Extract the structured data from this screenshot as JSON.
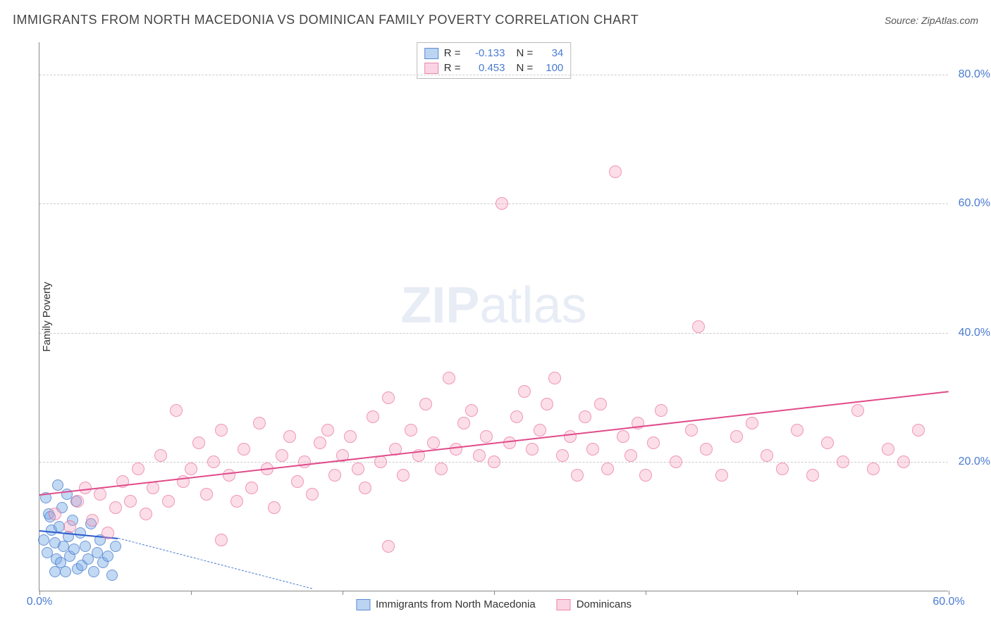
{
  "header": {
    "title": "IMMIGRANTS FROM NORTH MACEDONIA VS DOMINICAN FAMILY POVERTY CORRELATION CHART",
    "source": "Source: ZipAtlas.com"
  },
  "watermark": {
    "prefix": "ZIP",
    "suffix": "atlas"
  },
  "chart": {
    "type": "scatter",
    "y_axis_label": "Family Poverty",
    "xlim": [
      0,
      60
    ],
    "ylim": [
      0,
      85
    ],
    "x_ticks": [
      0,
      10,
      20,
      30,
      40,
      50,
      60
    ],
    "x_tick_labels": [
      "0.0%",
      "",
      "",
      "",
      "",
      "",
      "60.0%"
    ],
    "y_ticks": [
      20,
      40,
      60,
      80
    ],
    "y_tick_labels": [
      "20.0%",
      "40.0%",
      "60.0%",
      "80.0%"
    ],
    "grid_color": "#cccccc",
    "axis_color": "#888888",
    "label_color": "#4a7bd0",
    "series": [
      {
        "name": "Immigrants from North Macedonia",
        "color_fill": "rgba(120,170,230,0.45)",
        "color_stroke": "rgba(70,120,200,0.7)",
        "marker_size": 16,
        "r": -0.133,
        "n": 34,
        "r_text": "-0.133",
        "n_text": "34",
        "trend": {
          "x1": 0,
          "y1": 9.5,
          "x2": 5.2,
          "y2": 8.3,
          "color": "#2a5bd0",
          "dash_x2": 18,
          "dash_y2": 0.5
        },
        "points": [
          {
            "x": 0.3,
            "y": 8
          },
          {
            "x": 0.5,
            "y": 6
          },
          {
            "x": 0.6,
            "y": 12
          },
          {
            "x": 0.8,
            "y": 9.5
          },
          {
            "x": 1.0,
            "y": 7.5
          },
          {
            "x": 1.1,
            "y": 5
          },
          {
            "x": 1.2,
            "y": 16.5
          },
          {
            "x": 1.3,
            "y": 10
          },
          {
            "x": 1.4,
            "y": 4.5
          },
          {
            "x": 1.5,
            "y": 13
          },
          {
            "x": 1.6,
            "y": 7
          },
          {
            "x": 1.7,
            "y": 3
          },
          {
            "x": 1.8,
            "y": 15
          },
          {
            "x": 1.9,
            "y": 8.5
          },
          {
            "x": 2.0,
            "y": 5.5
          },
          {
            "x": 2.2,
            "y": 11
          },
          {
            "x": 2.3,
            "y": 6.5
          },
          {
            "x": 2.4,
            "y": 14
          },
          {
            "x": 2.5,
            "y": 3.5
          },
          {
            "x": 2.7,
            "y": 9
          },
          {
            "x": 2.8,
            "y": 4
          },
          {
            "x": 3.0,
            "y": 7
          },
          {
            "x": 3.2,
            "y": 5
          },
          {
            "x": 3.4,
            "y": 10.5
          },
          {
            "x": 3.6,
            "y": 3
          },
          {
            "x": 3.8,
            "y": 6
          },
          {
            "x": 4.0,
            "y": 8
          },
          {
            "x": 4.2,
            "y": 4.5
          },
          {
            "x": 4.5,
            "y": 5.5
          },
          {
            "x": 4.8,
            "y": 2.5
          },
          {
            "x": 5.0,
            "y": 7
          },
          {
            "x": 0.4,
            "y": 14.5
          },
          {
            "x": 0.7,
            "y": 11.5
          },
          {
            "x": 1.0,
            "y": 3
          }
        ]
      },
      {
        "name": "Dominicans",
        "color_fill": "rgba(245,160,190,0.35)",
        "color_stroke": "rgba(230,100,150,0.6)",
        "marker_size": 18,
        "r": 0.453,
        "n": 100,
        "r_text": "0.453",
        "n_text": "100",
        "trend": {
          "x1": 0,
          "y1": 15,
          "x2": 60,
          "y2": 31,
          "color": "#e04b8a"
        },
        "points": [
          {
            "x": 1,
            "y": 12
          },
          {
            "x": 2,
            "y": 10
          },
          {
            "x": 2.5,
            "y": 14
          },
          {
            "x": 3,
            "y": 16
          },
          {
            "x": 3.5,
            "y": 11
          },
          {
            "x": 4,
            "y": 15
          },
          {
            "x": 4.5,
            "y": 9
          },
          {
            "x": 5,
            "y": 13
          },
          {
            "x": 5.5,
            "y": 17
          },
          {
            "x": 6,
            "y": 14
          },
          {
            "x": 6.5,
            "y": 19
          },
          {
            "x": 7,
            "y": 12
          },
          {
            "x": 7.5,
            "y": 16
          },
          {
            "x": 8,
            "y": 21
          },
          {
            "x": 8.5,
            "y": 14
          },
          {
            "x": 9,
            "y": 28
          },
          {
            "x": 9.5,
            "y": 17
          },
          {
            "x": 10,
            "y": 19
          },
          {
            "x": 10.5,
            "y": 23
          },
          {
            "x": 11,
            "y": 15
          },
          {
            "x": 11.5,
            "y": 20
          },
          {
            "x": 12,
            "y": 25
          },
          {
            "x": 12.5,
            "y": 18
          },
          {
            "x": 13,
            "y": 14
          },
          {
            "x": 13.5,
            "y": 22
          },
          {
            "x": 14,
            "y": 16
          },
          {
            "x": 14.5,
            "y": 26
          },
          {
            "x": 15,
            "y": 19
          },
          {
            "x": 15.5,
            "y": 13
          },
          {
            "x": 16,
            "y": 21
          },
          {
            "x": 16.5,
            "y": 24
          },
          {
            "x": 17,
            "y": 17
          },
          {
            "x": 17.5,
            "y": 20
          },
          {
            "x": 18,
            "y": 15
          },
          {
            "x": 18.5,
            "y": 23
          },
          {
            "x": 19,
            "y": 25
          },
          {
            "x": 19.5,
            "y": 18
          },
          {
            "x": 20,
            "y": 21
          },
          {
            "x": 20.5,
            "y": 24
          },
          {
            "x": 21,
            "y": 19
          },
          {
            "x": 21.5,
            "y": 16
          },
          {
            "x": 22,
            "y": 27
          },
          {
            "x": 22.5,
            "y": 20
          },
          {
            "x": 23,
            "y": 30
          },
          {
            "x": 23.5,
            "y": 22
          },
          {
            "x": 24,
            "y": 18
          },
          {
            "x": 24.5,
            "y": 25
          },
          {
            "x": 25,
            "y": 21
          },
          {
            "x": 25.5,
            "y": 29
          },
          {
            "x": 26,
            "y": 23
          },
          {
            "x": 26.5,
            "y": 19
          },
          {
            "x": 27,
            "y": 33
          },
          {
            "x": 27.5,
            "y": 22
          },
          {
            "x": 28,
            "y": 26
          },
          {
            "x": 28.5,
            "y": 28
          },
          {
            "x": 29,
            "y": 21
          },
          {
            "x": 29.5,
            "y": 24
          },
          {
            "x": 30,
            "y": 20
          },
          {
            "x": 30.5,
            "y": 60
          },
          {
            "x": 31,
            "y": 23
          },
          {
            "x": 31.5,
            "y": 27
          },
          {
            "x": 32,
            "y": 31
          },
          {
            "x": 32.5,
            "y": 22
          },
          {
            "x": 33,
            "y": 25
          },
          {
            "x": 33.5,
            "y": 29
          },
          {
            "x": 34,
            "y": 33
          },
          {
            "x": 34.5,
            "y": 21
          },
          {
            "x": 35,
            "y": 24
          },
          {
            "x": 35.5,
            "y": 18
          },
          {
            "x": 36,
            "y": 27
          },
          {
            "x": 36.5,
            "y": 22
          },
          {
            "x": 37,
            "y": 29
          },
          {
            "x": 37.5,
            "y": 19
          },
          {
            "x": 38,
            "y": 65
          },
          {
            "x": 38.5,
            "y": 24
          },
          {
            "x": 39,
            "y": 21
          },
          {
            "x": 39.5,
            "y": 26
          },
          {
            "x": 40,
            "y": 18
          },
          {
            "x": 40.5,
            "y": 23
          },
          {
            "x": 41,
            "y": 28
          },
          {
            "x": 42,
            "y": 20
          },
          {
            "x": 43,
            "y": 25
          },
          {
            "x": 43.5,
            "y": 41
          },
          {
            "x": 44,
            "y": 22
          },
          {
            "x": 45,
            "y": 18
          },
          {
            "x": 46,
            "y": 24
          },
          {
            "x": 47,
            "y": 26
          },
          {
            "x": 48,
            "y": 21
          },
          {
            "x": 49,
            "y": 19
          },
          {
            "x": 50,
            "y": 25
          },
          {
            "x": 51,
            "y": 18
          },
          {
            "x": 52,
            "y": 23
          },
          {
            "x": 53,
            "y": 20
          },
          {
            "x": 54,
            "y": 28
          },
          {
            "x": 55,
            "y": 19
          },
          {
            "x": 56,
            "y": 22
          },
          {
            "x": 57,
            "y": 20
          },
          {
            "x": 58,
            "y": 25
          },
          {
            "x": 12,
            "y": 8
          },
          {
            "x": 23,
            "y": 7
          }
        ]
      }
    ]
  }
}
